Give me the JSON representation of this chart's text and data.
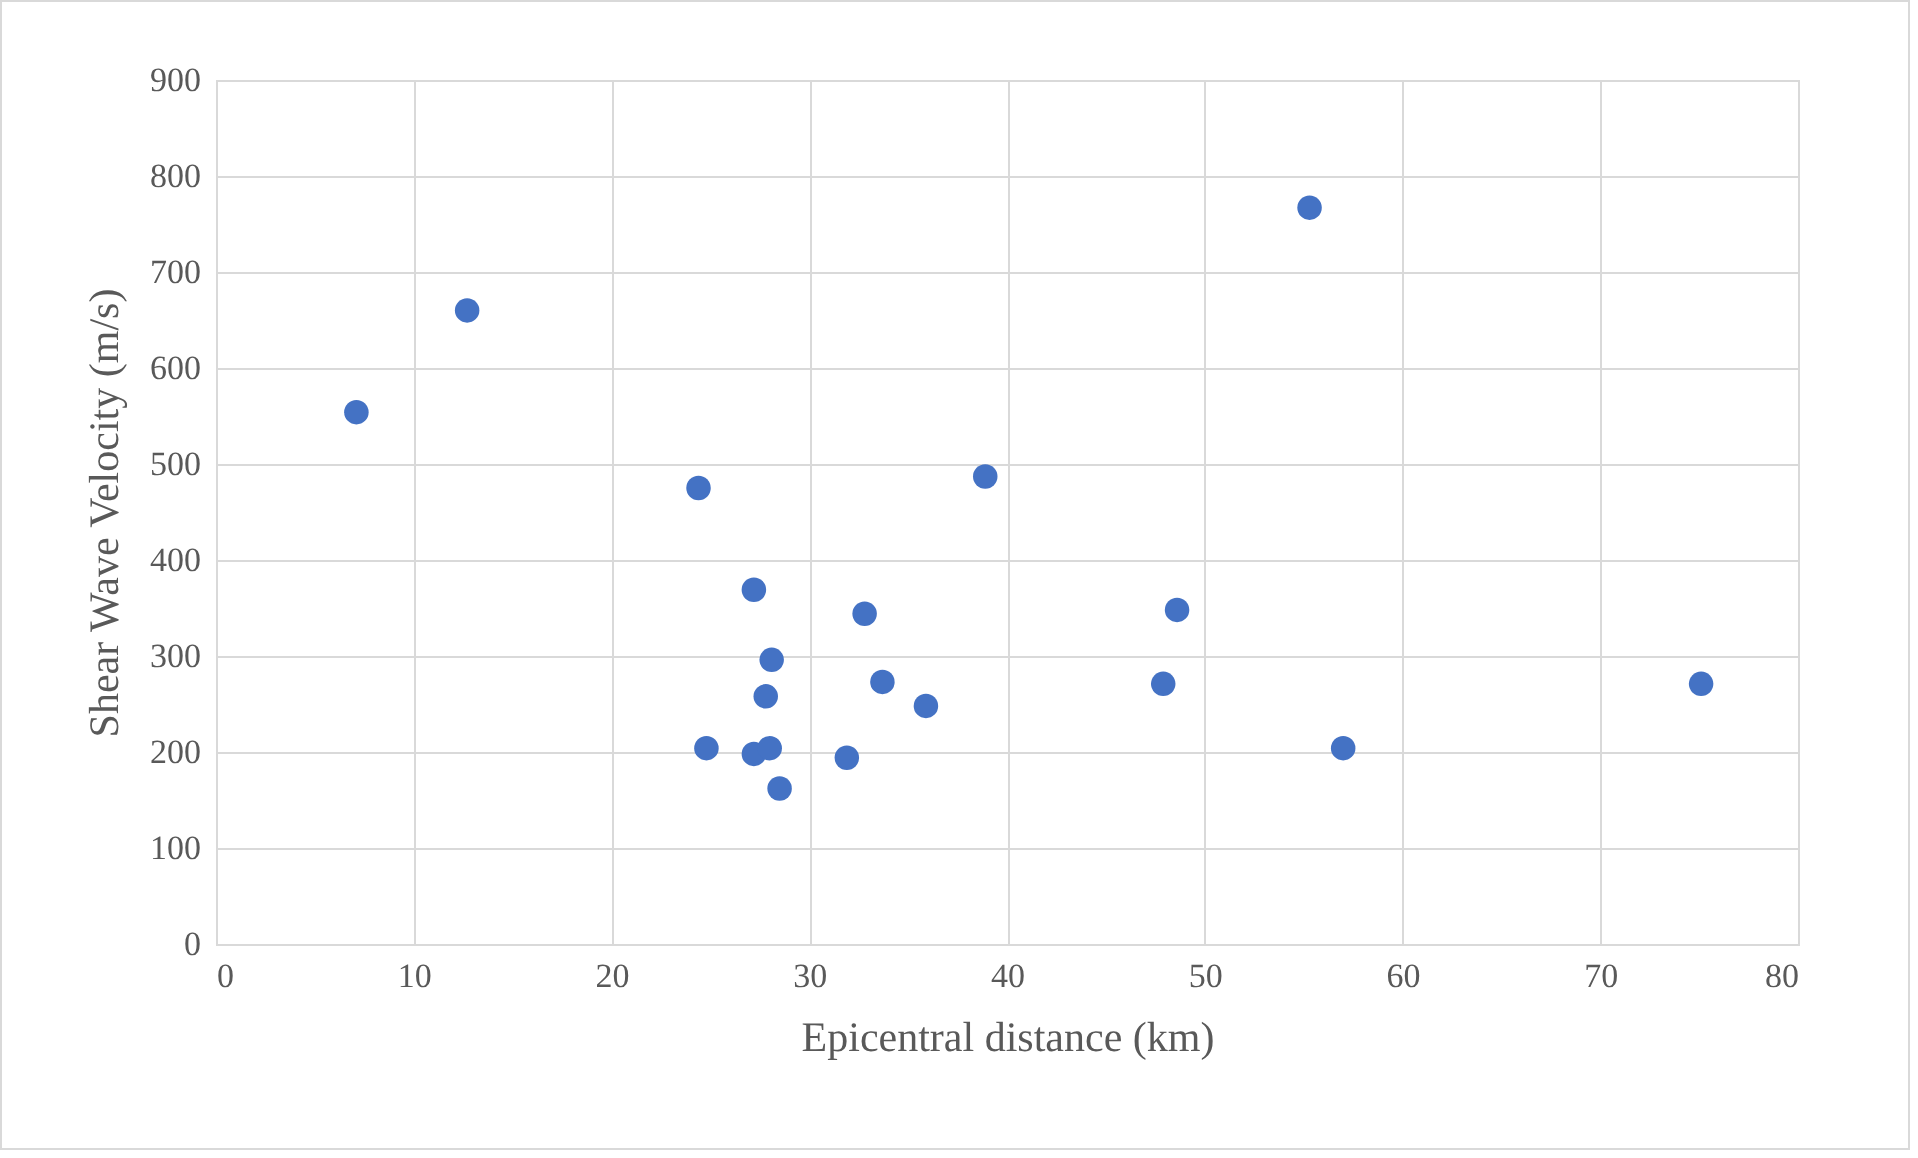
{
  "chart_data": {
    "type": "scatter",
    "xlabel": "Epicentral distance (km)",
    "ylabel": "Shear Wave Velocity (m/s)",
    "x": [
      7.1,
      12.7,
      24.4,
      38.9,
      55.3,
      27.2,
      32.8,
      48.6,
      28.1,
      33.7,
      27.8,
      35.9,
      47.9,
      75.1,
      24.8,
      27.2,
      28.0,
      28.5,
      31.9,
      57.0
    ],
    "series": [
      {
        "color": "#4472c4",
        "values": [
          554,
          660,
          475,
          487,
          767,
          369,
          344,
          348,
          296,
          273,
          258,
          248,
          271,
          271,
          204,
          198,
          204,
          162,
          194,
          204
        ]
      }
    ],
    "xlim": [
      0,
      80
    ],
    "xticks": [
      0,
      10,
      20,
      30,
      40,
      50,
      60,
      70,
      80
    ],
    "ylim": [
      0,
      900
    ],
    "yticks": [
      0,
      100,
      200,
      300,
      400,
      500,
      600,
      700,
      800,
      900
    ],
    "grid": true,
    "marker": "circle"
  }
}
